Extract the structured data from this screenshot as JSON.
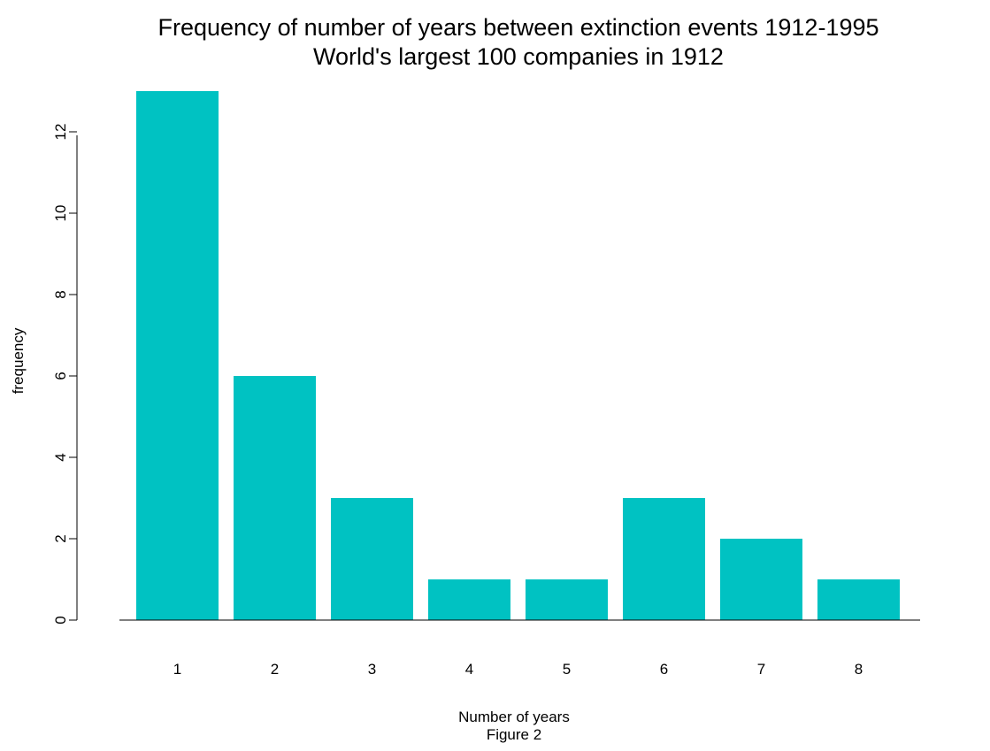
{
  "chart_data": {
    "type": "bar",
    "title": "Frequency of number of years between extinction events 1912-1995",
    "subtitle": "World's largest 100 companies in 1912",
    "xlabel": "Number of years",
    "caption": "Figure 2",
    "ylabel": "frequency",
    "categories": [
      "1",
      "2",
      "3",
      "4",
      "5",
      "6",
      "7",
      "8"
    ],
    "values": [
      13,
      6,
      3,
      1,
      1,
      3,
      2,
      1
    ],
    "ylim": [
      0,
      13
    ],
    "yticks": [
      0,
      2,
      4,
      6,
      8,
      10,
      12
    ],
    "ytick_labels": [
      "0",
      "2",
      "4",
      "6",
      "8",
      "10",
      "12"
    ],
    "grid": false,
    "bar_color": "#00C2C2"
  }
}
